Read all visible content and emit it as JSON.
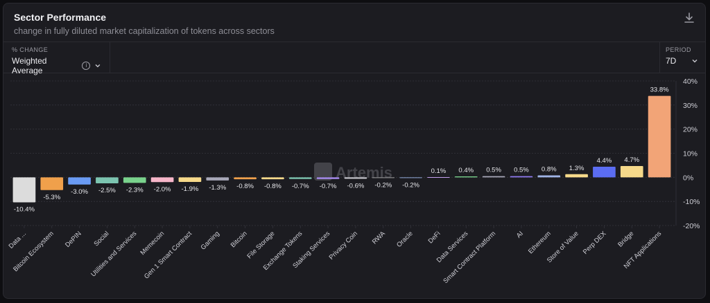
{
  "header": {
    "title": "Sector Performance",
    "subtitle": "change in fully diluted market capitalization of tokens across sectors",
    "download_icon": "download-icon"
  },
  "controls": {
    "metric": {
      "label": "% CHANGE",
      "value": "Weighted Average",
      "info_icon": "info-icon",
      "chevron_icon": "chevron-down-icon"
    },
    "period": {
      "label": "PERIOD",
      "value": "7D",
      "chevron_icon": "chevron-down-icon"
    }
  },
  "watermark": "Artemis",
  "colors": {
    "background": "#1c1c21",
    "grid": "#34343c",
    "label": "#e6e6ea",
    "axis_text": "#cfcfd6"
  },
  "chart_data": {
    "type": "bar",
    "title": "",
    "xlabel": "",
    "ylabel": "",
    "ylim": [
      -20,
      40
    ],
    "yticks": [
      40,
      30,
      20,
      10,
      0,
      -10,
      -20
    ],
    "ytick_labels": [
      "40%",
      "30%",
      "20%",
      "10%",
      "0%",
      "-10%",
      "-20%"
    ],
    "grid": true,
    "categories": [
      "Data ...",
      "Bitcoin Ecosystem",
      "DePIN",
      "Social",
      "Utilities and Services",
      "Memecoin",
      "Gen 1 Smart Contract",
      "Gaming",
      "Bitcoin",
      "File Storage",
      "Exchange Tokens",
      "Staking Services",
      "Privacy Coin",
      "RWA",
      "Oracle",
      "DeFi",
      "Data Services",
      "Smart Contract Platform",
      "AI",
      "Ethereum",
      "Store of Value",
      "Perp DEX",
      "Bridge",
      "NFT Applications"
    ],
    "values": [
      -10.4,
      -5.3,
      -3.0,
      -2.5,
      -2.3,
      -2.0,
      -1.9,
      -1.3,
      -0.8,
      -0.8,
      -0.7,
      -0.7,
      -0.6,
      -0.2,
      -0.2,
      0.1,
      0.4,
      0.5,
      0.5,
      0.8,
      1.3,
      4.4,
      4.7,
      33.8
    ],
    "value_labels": [
      "-10.4%",
      "-5.3%",
      "-3.0%",
      "-2.5%",
      "-2.3%",
      "-2.0%",
      "-1.9%",
      "-1.3%",
      "-0.8%",
      "-0.8%",
      "-0.7%",
      "-0.7%",
      "-0.6%",
      "-0.2%",
      "-0.2%",
      "0.1%",
      "0.4%",
      "0.5%",
      "0.5%",
      "0.8%",
      "1.3%",
      "4.4%",
      "4.7%",
      "33.8%"
    ],
    "bar_colors": [
      "#dcdcdc",
      "#f0a04b",
      "#6a9bf4",
      "#7cc4b0",
      "#79d28c",
      "#f7b6c9",
      "#f6d98a",
      "#a8a8b8",
      "#f0a04b",
      "#f6d98a",
      "#7cc4b0",
      "#a88cf0",
      "#cfcfd6",
      "#9e9e9e",
      "#8fa7d6",
      "#c5a0f0",
      "#79d28c",
      "#a8a8b8",
      "#8f7af0",
      "#a0b4e6",
      "#f6d98a",
      "#5b6df2",
      "#f6d98a",
      "#f2a477"
    ]
  }
}
